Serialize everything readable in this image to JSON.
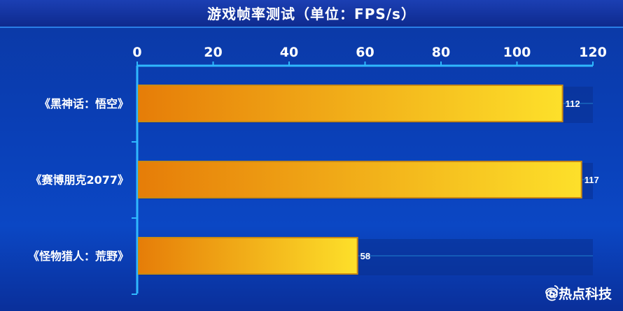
{
  "title": "游戏帧率测试（单位：FPS/s）",
  "watermark": "@热点科技",
  "colors": {
    "background": "#0b3aa8",
    "axis": "#2fb8ff",
    "bar_start": "#e67d08",
    "bar_end": "#fde02a",
    "bar_border": "#c98a14",
    "text": "#ffffff"
  },
  "chart_data": {
    "type": "bar",
    "orientation": "horizontal",
    "title": "游戏帧率测试（单位：FPS/s）",
    "categories": [
      "《黑神话：悟空》",
      "《赛博朋克2077》",
      "《怪物猎人：荒野》"
    ],
    "values": [
      112,
      117,
      58
    ],
    "data_labels": [
      "112",
      "117",
      "58"
    ],
    "xlim": [
      0,
      120
    ],
    "x_ticks": [
      "0",
      "20",
      "40",
      "60",
      "80",
      "100",
      "120"
    ],
    "x_axis_position": "top",
    "grid": true
  }
}
